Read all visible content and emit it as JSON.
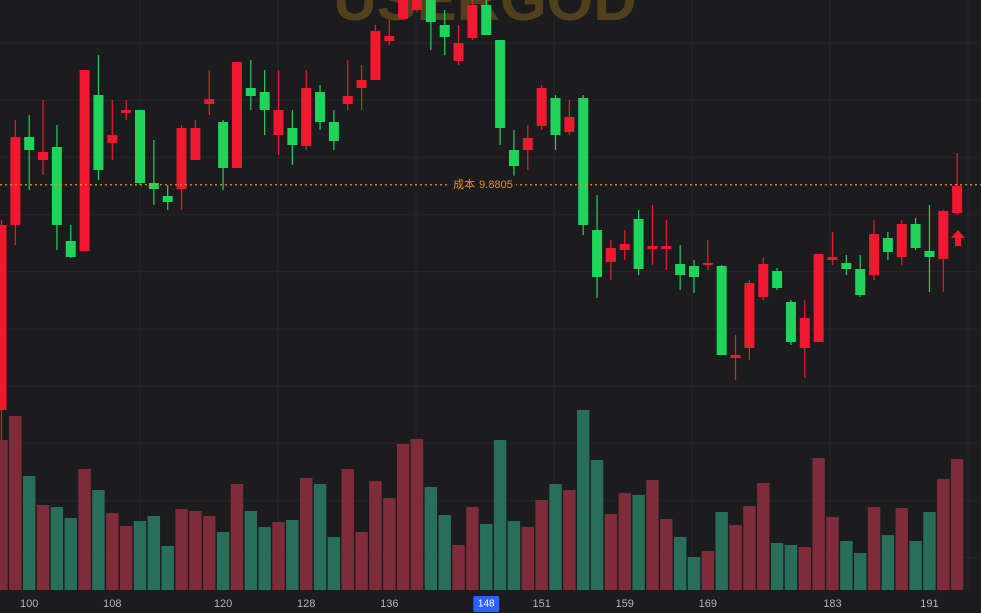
{
  "chart_data": {
    "type": "candlestick",
    "watermark": "USERGOD",
    "categories": [
      null,
      null,
      "100",
      null,
      null,
      null,
      null,
      null,
      "108",
      null,
      null,
      null,
      null,
      null,
      null,
      null,
      "120",
      null,
      null,
      null,
      null,
      null,
      "128",
      null,
      null,
      null,
      null,
      null,
      "136",
      null,
      null,
      null,
      null,
      null,
      null,
      "148",
      null,
      null,
      null,
      "151",
      null,
      null,
      null,
      null,
      null,
      "159",
      null,
      null,
      null,
      null,
      null,
      "169",
      null,
      null,
      null,
      null,
      null,
      null,
      null,
      null,
      "183",
      null,
      null,
      null,
      null,
      null,
      null,
      "191",
      null,
      null
    ],
    "open": [
      9.43,
      9.8,
      9.976,
      9.93,
      9.956,
      9.768,
      9.748,
      10.06,
      9.964,
      10.024,
      10.03,
      9.884,
      9.858,
      9.872,
      9.93,
      10.042,
      10.006,
      9.914,
      10.074,
      10.066,
      9.98,
      9.994,
      9.958,
      10.066,
      10.006,
      10.042,
      10.074,
      10.09,
      10.168,
      10.212,
      10.23,
      10.25,
      10.2,
      10.128,
      10.174,
      10.24,
      10.17,
      9.95,
      9.95,
      9.998,
      10.054,
      9.986,
      10.054,
      9.79,
      9.726,
      9.75,
      9.812,
      9.752,
      9.752,
      9.722,
      9.718,
      9.72,
      9.718,
      9.534,
      9.554,
      9.656,
      9.708,
      9.646,
      9.554,
      9.566,
      9.73,
      9.724,
      9.712,
      9.7,
      9.774,
      9.736,
      9.802,
      9.748,
      9.732,
      9.824
    ],
    "high": [
      9.81,
      10.01,
      10.02,
      10.05,
      10.0,
      9.8,
      10.11,
      10.14,
      10.05,
      10.05,
      10.03,
      9.97,
      9.88,
      10.0,
      10.01,
      10.11,
      10.01,
      10.126,
      10.13,
      10.11,
      10.11,
      10.03,
      10.11,
      10.08,
      10.03,
      10.13,
      10.12,
      10.2,
      10.21,
      10.25,
      10.26,
      10.27,
      10.23,
      10.2,
      10.26,
      10.27,
      10.17,
      9.99,
      10.0,
      10.08,
      10.06,
      10.05,
      10.06,
      9.86,
      9.77,
      9.79,
      9.83,
      9.84,
      9.81,
      9.76,
      9.73,
      9.77,
      9.72,
      9.58,
      9.69,
      9.734,
      9.714,
      9.65,
      9.65,
      9.742,
      9.786,
      9.74,
      9.74,
      9.81,
      9.786,
      9.81,
      9.814,
      9.84,
      9.83,
      9.944
    ],
    "low": [
      9.37,
      9.76,
      9.87,
      9.9,
      9.75,
      9.734,
      9.748,
      9.89,
      9.93,
      10.01,
      9.88,
      9.84,
      9.83,
      9.83,
      9.93,
      10.02,
      9.87,
      9.914,
      10.03,
      9.98,
      9.94,
      9.92,
      9.95,
      9.99,
      9.95,
      10.03,
      10.03,
      10.09,
      10.16,
      10.21,
      10.226,
      10.15,
      10.14,
      10.12,
      10.17,
      10.18,
      9.96,
      9.89,
      9.91,
      9.99,
      9.95,
      9.98,
      9.78,
      9.654,
      9.69,
      9.73,
      9.7,
      9.72,
      9.71,
      9.67,
      9.664,
      9.71,
      9.54,
      9.49,
      9.53,
      9.65,
      9.67,
      9.56,
      9.494,
      9.566,
      9.72,
      9.7,
      9.656,
      9.69,
      9.73,
      9.72,
      9.75,
      9.666,
      9.666,
      9.82
    ],
    "close": [
      9.8,
      9.976,
      9.95,
      9.946,
      9.8,
      9.736,
      10.11,
      9.91,
      9.98,
      10.03,
      9.884,
      9.872,
      9.846,
      9.994,
      9.994,
      10.052,
      9.914,
      10.126,
      10.058,
      10.03,
      10.03,
      9.96,
      10.074,
      10.006,
      9.968,
      10.058,
      10.09,
      10.188,
      10.178,
      10.25,
      10.25,
      10.206,
      10.176,
      10.164,
      10.24,
      10.18,
      9.994,
      9.918,
      9.974,
      10.074,
      9.98,
      10.016,
      9.8,
      9.696,
      9.754,
      9.762,
      9.712,
      9.758,
      9.758,
      9.7,
      9.696,
      9.724,
      9.54,
      9.54,
      9.684,
      9.722,
      9.674,
      9.566,
      9.614,
      9.742,
      9.736,
      9.712,
      9.66,
      9.782,
      9.746,
      9.802,
      9.754,
      9.736,
      9.828,
      9.878
    ],
    "volume": [
      150,
      174,
      114,
      85,
      83,
      72,
      121,
      100,
      77,
      64,
      69,
      74,
      44,
      81,
      79,
      74,
      58,
      106,
      79,
      63,
      68,
      70,
      112,
      106,
      53,
      121,
      58,
      109,
      92,
      146,
      151,
      103,
      75,
      45,
      83,
      66,
      150,
      69,
      63,
      90,
      106,
      100,
      180,
      130,
      76,
      97,
      95,
      110,
      71,
      53,
      33,
      39,
      78,
      65,
      84,
      107,
      47,
      45,
      43,
      132,
      73,
      49,
      37,
      83,
      55,
      82,
      49,
      78,
      111,
      131
    ],
    "ylim": [
      9.43,
      10.25
    ],
    "vlim": [
      0,
      180
    ],
    "up_color": "#f0192f",
    "down_color": "#1ed45a",
    "up_volume_color": "#7e2c3a",
    "down_volume_color": "#286e5b",
    "cost_line": {
      "label": "成本",
      "value": 9.8805,
      "color": "#e0902a"
    },
    "highlight": 35,
    "grid": true
  }
}
